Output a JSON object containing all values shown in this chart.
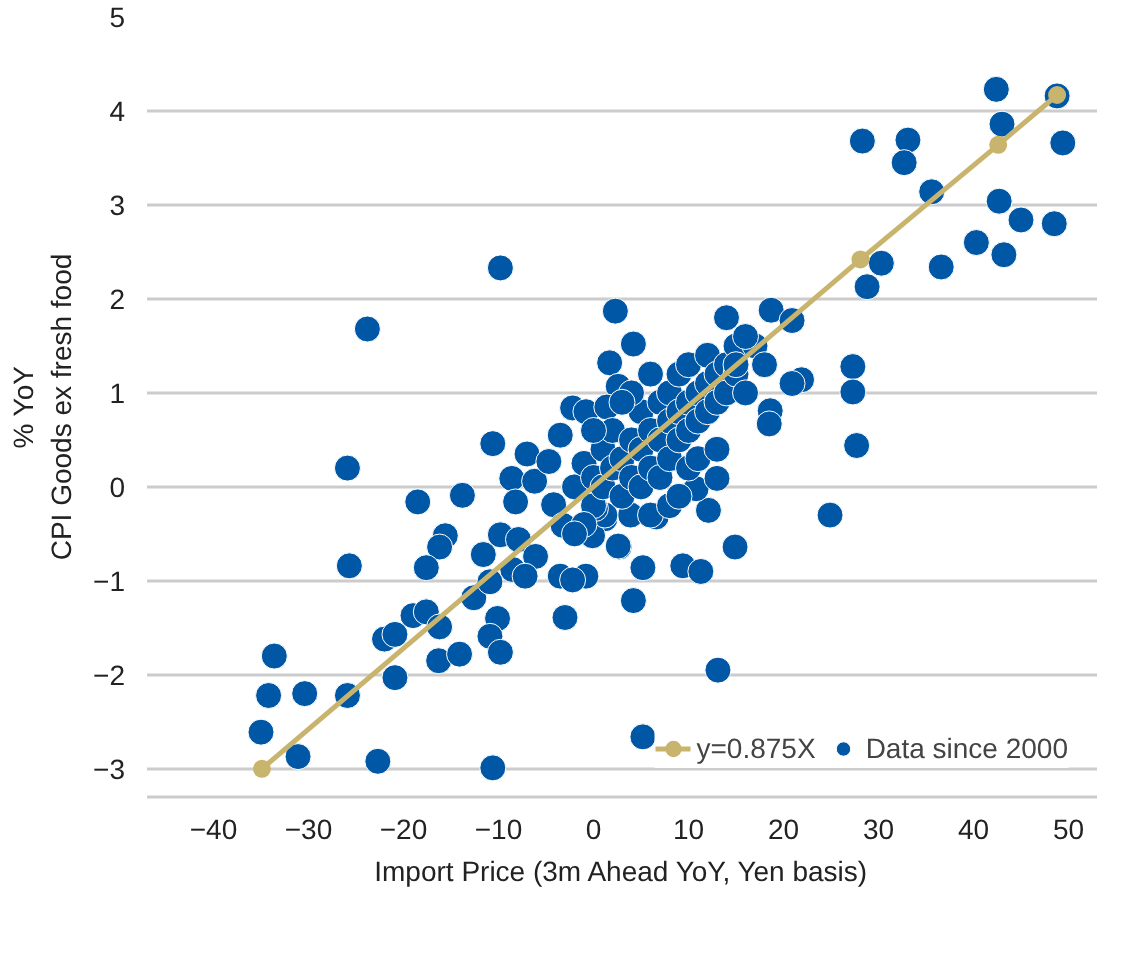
{
  "chart_data": {
    "type": "scatter",
    "xlabel": "Import Price (3m Ahead YoY, Yen basis)",
    "ylabel": "% YoY\nCPI Goods ex fresh food",
    "xlim": [
      -47,
      53
    ],
    "ylim": [
      -3.3,
      5
    ],
    "xticks": [
      -40,
      -30,
      -20,
      -10,
      0,
      10,
      20,
      30,
      40,
      50
    ],
    "yticks": [
      -3,
      -2,
      -1,
      0,
      1,
      2,
      3,
      4,
      5
    ],
    "grid": "y",
    "legend": "bottom right",
    "marker": "circle",
    "series": [
      {
        "name": "y=0.875X",
        "type": "line",
        "color": "#c8b46c",
        "x": [
          -34.9,
          28.1,
          42.6,
          48.8
        ],
        "values": [
          -3.0,
          2.42,
          3.64,
          4.17
        ]
      },
      {
        "name": "Data since 2000",
        "color": "#0057a6",
        "x": [
          -23.8,
          -9.8,
          2.3,
          4.2,
          1.7,
          42.4,
          48.8,
          43.0,
          28.3,
          33.1,
          49.4,
          32.7,
          35.6,
          42.7,
          45.0,
          48.5,
          40.3,
          43.2,
          30.3,
          36.6,
          28.8,
          18.7,
          20.9,
          14.0,
          27.3,
          27.3,
          21.9,
          20.9,
          18.6,
          18.5,
          27.7,
          24.9,
          12.1,
          10.8,
          13.0,
          14.9,
          2.7,
          5.2,
          9.4,
          11.3,
          4.2,
          13.1,
          5.2,
          6.6,
          3.9,
          1.2,
          -25.9,
          -25.7,
          -10.6,
          -18.5,
          -13.8,
          -15.6,
          -16.2,
          -17.6,
          -33.6,
          -34.2,
          -30.4,
          -35.0,
          -31.1,
          -22.7,
          -10.6,
          -25.9,
          -20.9,
          -22.0,
          -20.9,
          -19.0,
          -17.6,
          -16.2,
          -16.3,
          -14.1,
          -12.6,
          -10.9,
          -10.1,
          -10.9,
          -9.8,
          -11.6,
          -9.8,
          -7.9,
          -8.5,
          -6.1,
          -7.2,
          -3.0,
          -3.5,
          -0.8,
          -2.2,
          -8.6,
          -8.2,
          -7.0,
          -6.2,
          -4.7,
          -3.5,
          -2.2,
          -0.8,
          2.6,
          1.4,
          -4.2,
          -3.2,
          -0.1,
          2.6,
          1.2,
          0.2,
          -2,
          -1,
          0,
          0,
          1,
          1,
          2,
          2,
          3,
          3,
          4,
          4,
          5,
          5,
          5,
          6,
          6,
          7,
          7,
          7,
          8,
          8,
          8,
          9,
          9,
          9,
          10,
          10,
          10,
          11,
          11,
          12,
          12,
          12,
          13,
          13,
          14,
          14,
          15,
          15,
          17,
          16,
          6,
          4,
          3,
          -1,
          -2,
          0,
          6,
          8,
          10,
          11,
          13,
          9,
          16,
          18,
          15
        ],
        "values": [
          1.68,
          2.33,
          1.87,
          1.52,
          1.32,
          4.23,
          4.16,
          3.86,
          3.68,
          3.69,
          3.66,
          3.45,
          3.14,
          3.04,
          2.84,
          2.8,
          2.6,
          2.47,
          2.38,
          2.34,
          2.13,
          1.88,
          1.77,
          1.8,
          1.28,
          1.01,
          1.14,
          1.1,
          0.81,
          0.67,
          0.44,
          -0.3,
          -0.25,
          -0.02,
          0.09,
          -0.64,
          -0.64,
          -0.86,
          -0.84,
          -0.9,
          -1.21,
          -1.95,
          -2.66,
          -0.32,
          -0.3,
          -0.34,
          0.2,
          -0.84,
          0.46,
          -0.16,
          -0.09,
          -0.52,
          -0.64,
          -0.86,
          -1.8,
          -2.22,
          -2.2,
          -2.61,
          -2.87,
          -2.92,
          -2.99,
          -2.22,
          -2.03,
          -1.62,
          -1.57,
          -1.37,
          -1.33,
          -1.49,
          -1.85,
          -1.78,
          -1.18,
          -1.01,
          -1.4,
          -1.59,
          -1.76,
          -0.72,
          -0.51,
          -0.56,
          -0.88,
          -0.74,
          -0.95,
          -1.39,
          -0.95,
          -0.95,
          -0.99,
          0.09,
          -0.16,
          0.35,
          0.06,
          0.27,
          0.55,
          0.84,
          0.8,
          1.07,
          0.85,
          -0.19,
          -0.41,
          -0.52,
          -0.63,
          -0.3,
          -0.23,
          0.0,
          0.25,
          0.1,
          -0.2,
          0.4,
          0.0,
          0.2,
          0.6,
          0.3,
          -0.1,
          0.5,
          0.1,
          0.8,
          0.4,
          0.0,
          0.6,
          0.2,
          0.9,
          0.5,
          0.1,
          0.7,
          0.3,
          1.0,
          0.8,
          0.5,
          1.2,
          0.9,
          0.6,
          1.3,
          1.0,
          0.7,
          1.1,
          0.8,
          1.4,
          1.2,
          0.9,
          1.3,
          1.0,
          1.5,
          1.2,
          1.5,
          1.0,
          1.2,
          1.0,
          0.9,
          -0.4,
          -0.5,
          0.6,
          -0.3,
          -0.2,
          0.2,
          0.3,
          0.4,
          -0.1,
          1.6,
          1.3,
          1.3
        ]
      }
    ]
  }
}
